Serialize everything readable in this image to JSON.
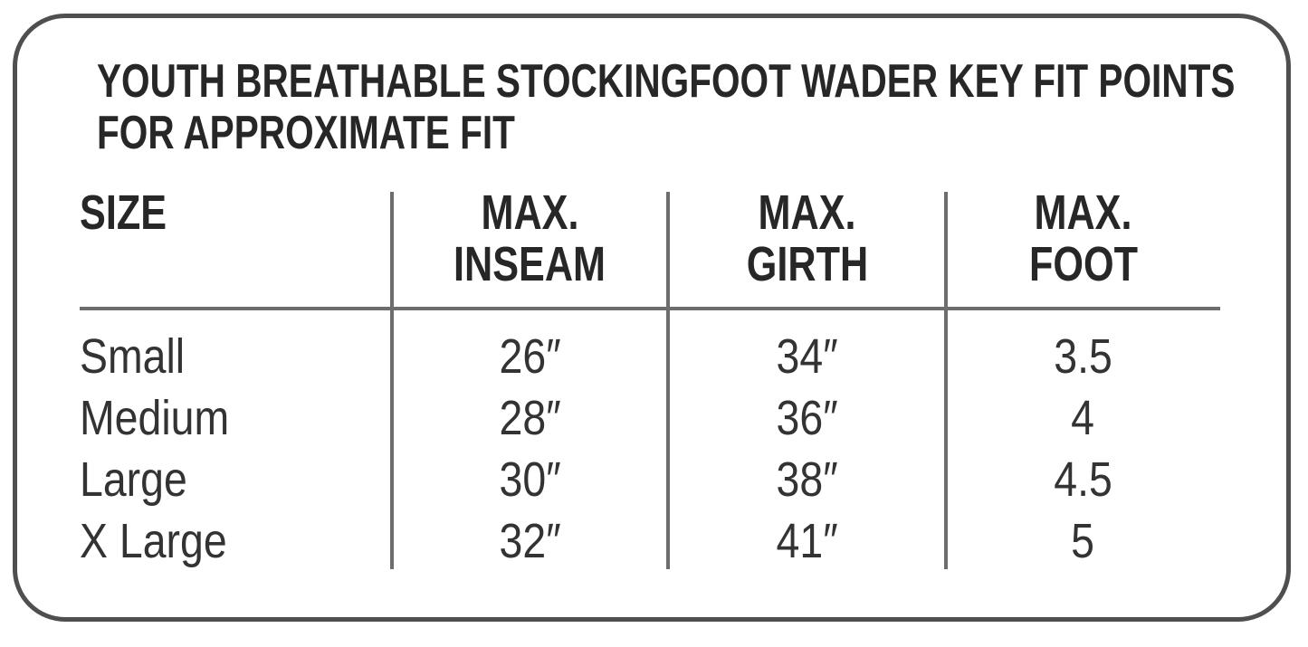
{
  "title": {
    "line1": "YOUTH BREATHABLE STOCKINGFOOT WADER KEY FIT POINTS",
    "line2": "FOR APPROXIMATE FIT"
  },
  "table": {
    "header": {
      "size": "SIZE",
      "inseam": {
        "line1": "MAX.",
        "line2": "INSEAM"
      },
      "girth": {
        "line1": "MAX.",
        "line2": "GIRTH"
      },
      "foot": {
        "line1": "MAX.",
        "line2": "FOOT"
      }
    },
    "rows": [
      {
        "size": "Small",
        "inseam": "26″",
        "girth": "34″",
        "foot": "3.5"
      },
      {
        "size": "Medium",
        "inseam": "28″",
        "girth": "36″",
        "foot": "4"
      },
      {
        "size": "Large",
        "inseam": "30″",
        "girth": "38″",
        "foot": "4.5"
      },
      {
        "size": "X Large",
        "inseam": "32″",
        "girth": "41″",
        "foot": "5"
      }
    ]
  },
  "chart_data": {
    "type": "table",
    "title": "YOUTH BREATHABLE STOCKINGFOOT WADER KEY FIT POINTS FOR APPROXIMATE FIT",
    "columns": [
      "SIZE",
      "MAX. INSEAM",
      "MAX. GIRTH",
      "MAX. FOOT"
    ],
    "rows": [
      [
        "Small",
        "26″",
        "34″",
        "3.5"
      ],
      [
        "Medium",
        "28″",
        "36″",
        "4"
      ],
      [
        "Large",
        "30″",
        "38″",
        "4.5"
      ],
      [
        "X Large",
        "32″",
        "41″",
        "5"
      ]
    ]
  },
  "colors": {
    "background": "#ffffff",
    "border": "#4f4f4f",
    "rule_lines": "#6d6d6d",
    "heading_text": "#272727",
    "body_text": "#333333"
  }
}
